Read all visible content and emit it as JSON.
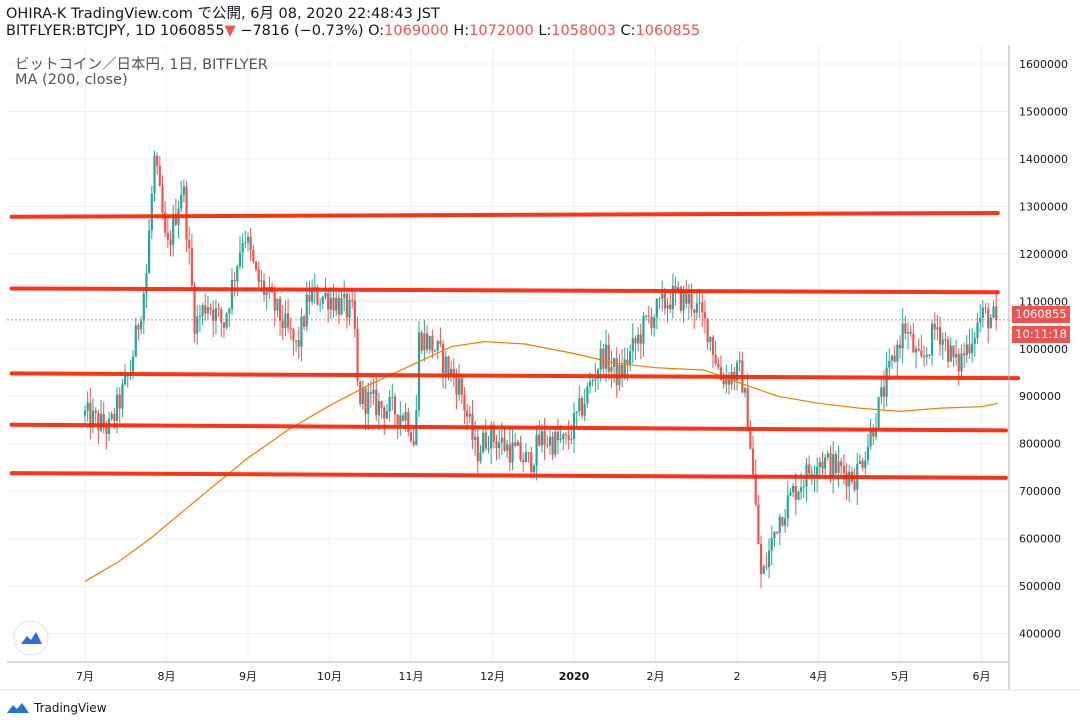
{
  "header": {
    "line1": "OHIRA-K TradingView.com で公開, 6月 08, 2020 22:48:43 JST",
    "symbol": "BITFLYER:BTCJPY, 1D 1060855",
    "change_arrow": "▼",
    "change": "−7816 (−0.73%)",
    "o_label": "O:",
    "o_value": "1069000",
    "h_label": "H:",
    "h_value": "1072000",
    "l_label": "L:",
    "l_value": "1058003",
    "c_label": "C:",
    "c_value": "1060855"
  },
  "legend": {
    "title": "ビットコイン／日本円, 1日, BITFLYER",
    "indicator": "MA (200, close)"
  },
  "badges": {
    "price": "1060855",
    "countdown": "10:11:18"
  },
  "footer": {
    "brand": "TradingView"
  },
  "colors": {
    "up": "#26a69a",
    "down": "#ef5350",
    "ma": "#f57c00",
    "hline": "#ff2200",
    "grid": "#eef0f3",
    "axis_text": "#131722"
  },
  "chart_data": {
    "type": "candlestick",
    "ylim": [
      340000,
      1640000
    ],
    "y_ticks": [
      400000,
      500000,
      600000,
      700000,
      800000,
      900000,
      1000000,
      1100000,
      1200000,
      1300000,
      1400000,
      1500000,
      1600000
    ],
    "x_labels": [
      "7月",
      "8月",
      "9月",
      "10月",
      "11月",
      "12月",
      "2020",
      "2月",
      "2",
      "4月",
      "5月",
      "6月"
    ],
    "last_price": 1060855,
    "close_path": [
      {
        "m": 0.0,
        "v": 860000
      },
      {
        "m": 0.3,
        "v": 830000
      },
      {
        "m": 0.55,
        "v": 950000
      },
      {
        "m": 0.75,
        "v": 1150000
      },
      {
        "m": 0.85,
        "v": 1400000
      },
      {
        "m": 0.95,
        "v": 1280000
      },
      {
        "m": 1.0,
        "v": 1200000
      },
      {
        "m": 1.2,
        "v": 1350000
      },
      {
        "m": 1.35,
        "v": 1050000
      },
      {
        "m": 1.5,
        "v": 1100000
      },
      {
        "m": 1.7,
        "v": 1050000
      },
      {
        "m": 1.95,
        "v": 1250000
      },
      {
        "m": 2.1,
        "v": 1150000
      },
      {
        "m": 2.35,
        "v": 1080000
      },
      {
        "m": 2.6,
        "v": 1000000
      },
      {
        "m": 2.75,
        "v": 1110000
      },
      {
        "m": 3.0,
        "v": 1110000
      },
      {
        "m": 3.3,
        "v": 1070000
      },
      {
        "m": 3.35,
        "v": 900000
      },
      {
        "m": 3.6,
        "v": 880000
      },
      {
        "m": 3.95,
        "v": 860000
      },
      {
        "m": 4.05,
        "v": 800000
      },
      {
        "m": 4.1,
        "v": 1030000
      },
      {
        "m": 4.3,
        "v": 1000000
      },
      {
        "m": 4.6,
        "v": 920000
      },
      {
        "m": 4.8,
        "v": 780000
      },
      {
        "m": 4.95,
        "v": 820000
      },
      {
        "m": 5.2,
        "v": 790000
      },
      {
        "m": 5.45,
        "v": 760000
      },
      {
        "m": 5.6,
        "v": 810000
      },
      {
        "m": 5.9,
        "v": 800000
      },
      {
        "m": 6.1,
        "v": 880000
      },
      {
        "m": 6.35,
        "v": 990000
      },
      {
        "m": 6.55,
        "v": 940000
      },
      {
        "m": 6.9,
        "v": 1060000
      },
      {
        "m": 7.2,
        "v": 1110000
      },
      {
        "m": 7.45,
        "v": 1100000
      },
      {
        "m": 7.65,
        "v": 1040000
      },
      {
        "m": 7.8,
        "v": 940000
      },
      {
        "m": 8.05,
        "v": 950000
      },
      {
        "m": 8.15,
        "v": 830000
      },
      {
        "m": 8.3,
        "v": 510000
      },
      {
        "m": 8.5,
        "v": 640000
      },
      {
        "m": 8.7,
        "v": 700000
      },
      {
        "m": 9.0,
        "v": 770000
      },
      {
        "m": 9.2,
        "v": 750000
      },
      {
        "m": 9.45,
        "v": 730000
      },
      {
        "m": 9.6,
        "v": 800000
      },
      {
        "m": 9.85,
        "v": 940000
      },
      {
        "m": 10.05,
        "v": 1050000
      },
      {
        "m": 10.25,
        "v": 960000
      },
      {
        "m": 10.45,
        "v": 1050000
      },
      {
        "m": 10.7,
        "v": 960000
      },
      {
        "m": 11.0,
        "v": 1070000
      },
      {
        "m": 11.2,
        "v": 1060855
      }
    ],
    "ma_path": [
      {
        "m": 0.0,
        "v": 510000
      },
      {
        "m": 0.4,
        "v": 550000
      },
      {
        "m": 0.8,
        "v": 600000
      },
      {
        "m": 1.5,
        "v": 700000
      },
      {
        "m": 2.0,
        "v": 770000
      },
      {
        "m": 2.5,
        "v": 830000
      },
      {
        "m": 3.0,
        "v": 880000
      },
      {
        "m": 3.5,
        "v": 925000
      },
      {
        "m": 4.0,
        "v": 965000
      },
      {
        "m": 4.5,
        "v": 1005000
      },
      {
        "m": 4.9,
        "v": 1015000
      },
      {
        "m": 5.4,
        "v": 1010000
      },
      {
        "m": 6.0,
        "v": 990000
      },
      {
        "m": 6.5,
        "v": 970000
      },
      {
        "m": 7.0,
        "v": 960000
      },
      {
        "m": 7.6,
        "v": 955000
      },
      {
        "m": 8.0,
        "v": 930000
      },
      {
        "m": 8.5,
        "v": 900000
      },
      {
        "m": 9.0,
        "v": 885000
      },
      {
        "m": 9.5,
        "v": 875000
      },
      {
        "m": 10.0,
        "v": 868000
      },
      {
        "m": 10.5,
        "v": 875000
      },
      {
        "m": 11.0,
        "v": 878000
      },
      {
        "m": 11.2,
        "v": 885000
      }
    ],
    "horizontal_lines": [
      {
        "m0": -0.9,
        "v0": 1278000,
        "m1": 11.2,
        "v1": 1286000
      },
      {
        "m0": -0.9,
        "v0": 1127000,
        "m1": 11.2,
        "v1": 1119000
      },
      {
        "m0": -0.9,
        "v0": 948000,
        "m1": 11.45,
        "v1": 938000
      },
      {
        "m0": -0.9,
        "v0": 840000,
        "m1": 11.3,
        "v1": 828000
      },
      {
        "m0": -0.9,
        "v0": 738000,
        "m1": 11.3,
        "v1": 728000
      }
    ]
  }
}
